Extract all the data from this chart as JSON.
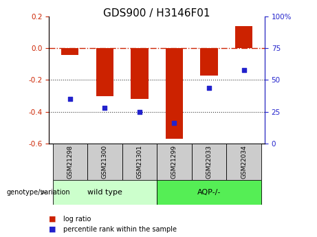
{
  "title": "GDS900 / H3146F01",
  "samples": [
    "GSM21298",
    "GSM21300",
    "GSM21301",
    "GSM21299",
    "GSM22033",
    "GSM22034"
  ],
  "log_ratio": [
    -0.04,
    -0.3,
    -0.32,
    -0.57,
    -0.17,
    0.14
  ],
  "percentile_rank": [
    35,
    28,
    25,
    16,
    44,
    58
  ],
  "bar_color": "#cc2200",
  "dot_color": "#2222cc",
  "left_ylim": [
    -0.6,
    0.2
  ],
  "right_ylim": [
    0,
    100
  ],
  "left_yticks": [
    -0.6,
    -0.4,
    -0.2,
    0.0,
    0.2
  ],
  "right_yticks": [
    0,
    25,
    50,
    75,
    100
  ],
  "right_yticklabels": [
    "0",
    "25",
    "50",
    "75",
    "100%"
  ],
  "hline_zero_color": "#cc2200",
  "hline_dotted_color": "#333333",
  "hline_dotted_vals": [
    -0.2,
    -0.4
  ],
  "bar_width": 0.5,
  "genotype_label": "genotype/variation",
  "wt_color": "#ccffcc",
  "aqp_color": "#55ee55",
  "wt_label": "wild type",
  "aqp_label": "AQP-/-",
  "sample_box_color": "#cccccc",
  "legend_items": [
    {
      "color": "#cc2200",
      "label": "log ratio"
    },
    {
      "color": "#2222cc",
      "label": "percentile rank within the sample"
    }
  ],
  "left_axis_color": "#cc2200",
  "right_axis_color": "#2222cc",
  "title_fontsize": 11,
  "tick_fontsize": 7.5,
  "label_fontsize": 7.5
}
